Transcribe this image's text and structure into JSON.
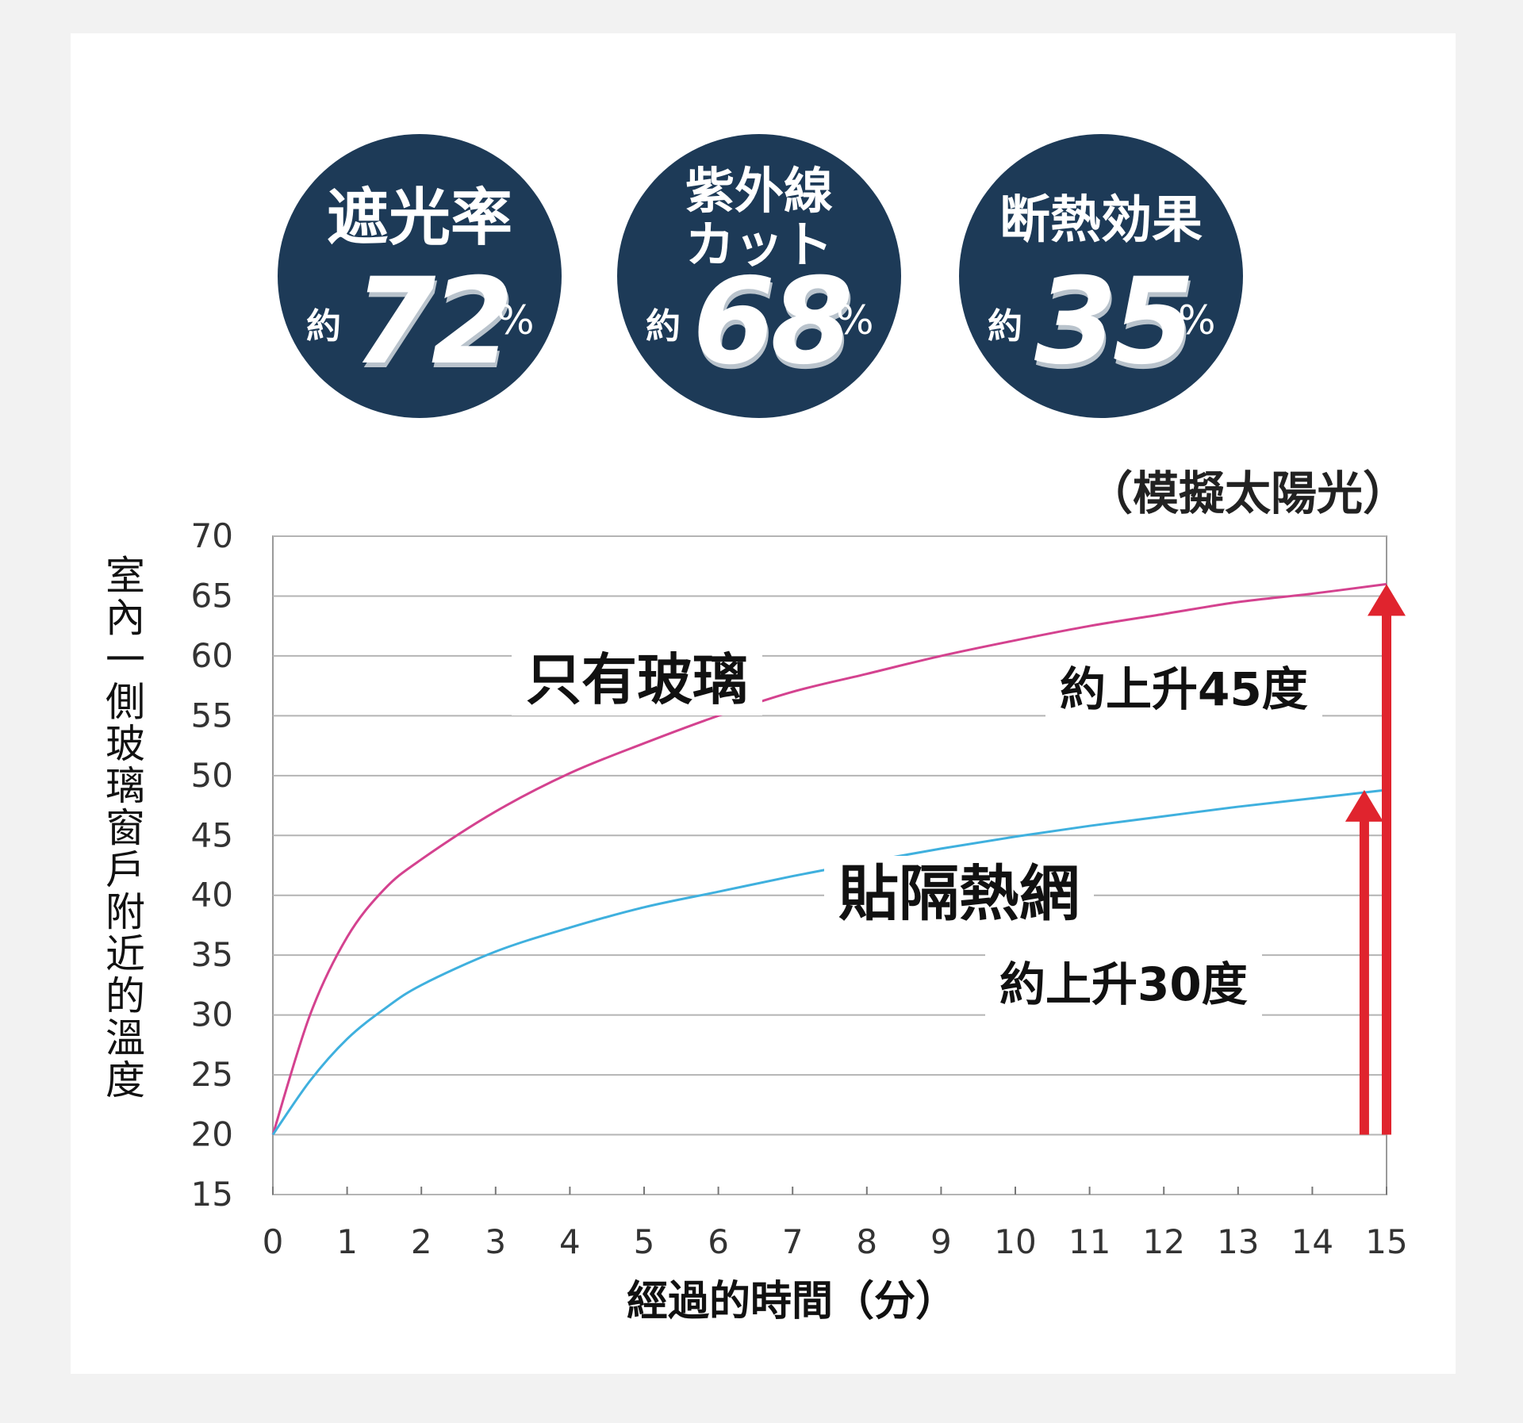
{
  "badges": [
    {
      "title": "遮光率",
      "prefix": "約",
      "value": "72",
      "unit": "%"
    },
    {
      "title": "紫外線\nカット",
      "prefix": "約",
      "value": "68",
      "unit": "%"
    },
    {
      "title": "断熱効果",
      "prefix": "約",
      "value": "35",
      "unit": "%"
    }
  ],
  "colors": {
    "badge_bg": "#1d3a57",
    "glass_line": "#d4428f",
    "film_line": "#3fb0de",
    "arrow": "#e0242e",
    "grid": "#b4b4b4"
  },
  "chart_data": {
    "type": "line",
    "title": "",
    "subtitle": "（模擬太陽光）",
    "xlabel": "經過的時間（分）",
    "ylabel": "室內一側玻璃窗戶附近的溫度",
    "xlim": [
      0,
      15
    ],
    "ylim": [
      15,
      70
    ],
    "x_ticks": [
      0,
      1,
      2,
      3,
      4,
      5,
      6,
      7,
      8,
      9,
      10,
      11,
      12,
      13,
      14,
      15
    ],
    "y_ticks": [
      15,
      20,
      25,
      30,
      35,
      40,
      45,
      50,
      55,
      60,
      65,
      70
    ],
    "grid": true,
    "x": [
      0,
      0.5,
      1,
      1.5,
      2,
      3,
      4,
      5,
      6,
      7,
      8,
      9,
      10,
      11,
      12,
      13,
      14,
      15
    ],
    "series": [
      {
        "name": "只有玻璃",
        "color": "#d4428f",
        "values": [
          20,
          30,
          36.5,
          40.5,
          43,
          47,
          50.2,
          52.7,
          55,
          57,
          58.5,
          60,
          61.3,
          62.5,
          63.5,
          64.5,
          65.2,
          66
        ]
      },
      {
        "name": "貼隔熱網",
        "color": "#3fb0de",
        "values": [
          20,
          24.5,
          28,
          30.5,
          32.5,
          35.3,
          37.3,
          39,
          40.3,
          41.6,
          42.8,
          43.9,
          44.9,
          45.8,
          46.6,
          47.4,
          48.1,
          48.8
        ]
      }
    ],
    "annotations": [
      {
        "text": "約上升45度",
        "from": 20,
        "to": 66,
        "at_x": 15
      },
      {
        "text": "約上升30度",
        "from": 20,
        "to": 48.8,
        "at_x": 14.7
      }
    ]
  }
}
